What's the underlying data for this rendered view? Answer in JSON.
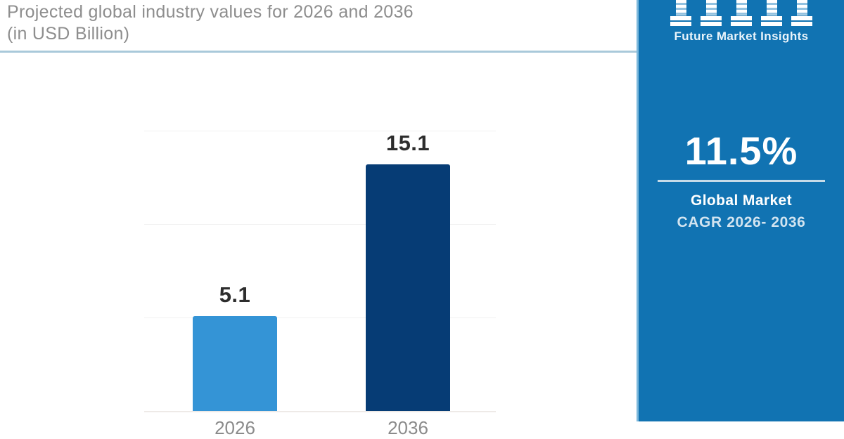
{
  "header": {
    "title_line1": "Projected global industry values for 2026 and 2036",
    "title_line2": "(in USD Billion)"
  },
  "chart_data": {
    "type": "bar",
    "title": "Projected global industry values for 2026 and 2036 (in USD Billion)",
    "unit": "USD Billion",
    "categories": [
      "2026",
      "2036"
    ],
    "values": [
      5.1,
      15.1
    ],
    "value_labels": [
      "5.1",
      "15.1"
    ],
    "bar_colors": [
      "#3494d6",
      "#063c75"
    ],
    "ylim": [
      0,
      15.1
    ],
    "grid": "horizontal",
    "legend": "none"
  },
  "sidebar": {
    "brand": "Future Market Insights",
    "logo_icon": "five-column-bars-logo",
    "cagr_value": "11.5%",
    "caption_line1": "Global Market",
    "caption_line2": "CAGR 2026- 2036"
  },
  "colors": {
    "sidebar_background": "#1173b2",
    "sidebar_edge": "#7db9dd",
    "bar_2026": "#3494d6",
    "bar_2036": "#063c75",
    "title_text": "#8e8e8e",
    "header_divider": "#a9c9da",
    "value_label_text": "#2d2d2d",
    "gridline": "#f1f1f1"
  }
}
